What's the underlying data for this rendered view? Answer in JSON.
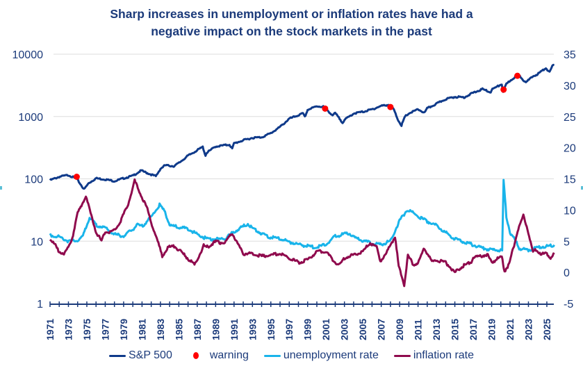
{
  "title_lines": [
    "Sharp increases in unemployment or inflation rates have had a",
    "negative impact on the stock markets in the past"
  ],
  "chart_data": {
    "type": "line",
    "title": "Sharp increases in unemployment or inflation rates have had a negative impact on the stock markets in the past",
    "xlabel": "",
    "ylabel_left": "",
    "ylabel_right": "",
    "x_ticks": [
      "1971",
      "1973",
      "1975",
      "1977",
      "1979",
      "1981",
      "1983",
      "1985",
      "1987",
      "1989",
      "1991",
      "1993",
      "1995",
      "1997",
      "1999",
      "2001",
      "2003",
      "2005",
      "2007",
      "2009",
      "2011",
      "2013",
      "2015",
      "2017",
      "2019",
      "2021",
      "2023",
      "2025"
    ],
    "y_left": {
      "scale": "log",
      "range": [
        1,
        10000
      ],
      "ticks": [
        "1",
        "10",
        "100",
        "1000",
        "10000"
      ]
    },
    "y_right": {
      "scale": "linear",
      "range": [
        -5,
        35
      ],
      "ticks": [
        "-5",
        "0",
        "5",
        "10",
        "15",
        "20",
        "25",
        "30",
        "35"
      ]
    },
    "grid": true,
    "legend": "bottom",
    "series": [
      {
        "name": "S&P 500",
        "axis": "left",
        "color": "#0f3a8a",
        "points": [
          [
            1971,
            95
          ],
          [
            1972,
            108
          ],
          [
            1973,
            115
          ],
          [
            1973.9,
            100
          ],
          [
            1974.7,
            68
          ],
          [
            1975.2,
            85
          ],
          [
            1976,
            102
          ],
          [
            1977,
            98
          ],
          [
            1978,
            92
          ],
          [
            1979,
            102
          ],
          [
            1980,
            112
          ],
          [
            1980.9,
            136
          ],
          [
            1981.5,
            125
          ],
          [
            1982.5,
            110
          ],
          [
            1983,
            145
          ],
          [
            1983.5,
            165
          ],
          [
            1984.5,
            160
          ],
          [
            1985,
            180
          ],
          [
            1986,
            235
          ],
          [
            1987.6,
            325
          ],
          [
            1987.9,
            235
          ],
          [
            1988,
            260
          ],
          [
            1989,
            330
          ],
          [
            1990.5,
            355
          ],
          [
            1990.8,
            305
          ],
          [
            1991,
            370
          ],
          [
            1992,
            415
          ],
          [
            1993,
            455
          ],
          [
            1994,
            465
          ],
          [
            1995,
            540
          ],
          [
            1996,
            680
          ],
          [
            1997,
            920
          ],
          [
            1998.5,
            1120
          ],
          [
            1998.7,
            980
          ],
          [
            1999,
            1280
          ],
          [
            2000,
            1460
          ],
          [
            2000.7,
            1440
          ],
          [
            2001,
            1320
          ],
          [
            2001.7,
            1050
          ],
          [
            2002,
            1130
          ],
          [
            2002.8,
            800
          ],
          [
            2003,
            880
          ],
          [
            2004,
            1120
          ],
          [
            2005,
            1190
          ],
          [
            2006,
            1300
          ],
          [
            2007,
            1480
          ],
          [
            2007.8,
            1540
          ],
          [
            2008.3,
            1350
          ],
          [
            2008.8,
            900
          ],
          [
            2009.2,
            720
          ],
          [
            2009.6,
            1000
          ],
          [
            2010,
            1120
          ],
          [
            2011,
            1300
          ],
          [
            2011.7,
            1150
          ],
          [
            2012,
            1350
          ],
          [
            2013,
            1600
          ],
          [
            2014,
            1900
          ],
          [
            2015,
            2070
          ],
          [
            2016,
            2030
          ],
          [
            2017,
            2400
          ],
          [
            2018,
            2750
          ],
          [
            2018.9,
            2450
          ],
          [
            2019,
            2700
          ],
          [
            2020.1,
            3300
          ],
          [
            2020.25,
            2500
          ],
          [
            2020.6,
            3300
          ],
          [
            2021,
            3750
          ],
          [
            2021.9,
            4700
          ],
          [
            2022.5,
            3800
          ],
          [
            2022.8,
            3600
          ],
          [
            2023.5,
            4400
          ],
          [
            2024,
            4800
          ],
          [
            2024.9,
            6000
          ],
          [
            2025.3,
            5100
          ],
          [
            2025.6,
            6400
          ],
          [
            2025.8,
            6700
          ]
        ]
      },
      {
        "name": "unemployment rate",
        "axis": "right",
        "color": "#19b4ea",
        "points": [
          [
            1971,
            6
          ],
          [
            1972,
            5.7
          ],
          [
            1973,
            5
          ],
          [
            1974,
            5.1
          ],
          [
            1974.5,
            5.6
          ],
          [
            1975.3,
            8.8
          ],
          [
            1976,
            7.6
          ],
          [
            1977,
            7.1
          ],
          [
            1978,
            6.1
          ],
          [
            1979,
            5.8
          ],
          [
            1980,
            6.9
          ],
          [
            1980.5,
            7.6
          ],
          [
            1981,
            7.4
          ],
          [
            1982,
            8.9
          ],
          [
            1982.9,
            10.8
          ],
          [
            1983.5,
            9.7
          ],
          [
            1984,
            7.6
          ],
          [
            1985,
            7.2
          ],
          [
            1986,
            7
          ],
          [
            1987,
            6.1
          ],
          [
            1988,
            5.4
          ],
          [
            1989,
            5.3
          ],
          [
            1990,
            5.4
          ],
          [
            1991,
            6.5
          ],
          [
            1992.5,
            7.8
          ],
          [
            1993,
            7.1
          ],
          [
            1994,
            6.2
          ],
          [
            1995,
            5.6
          ],
          [
            1996,
            5.4
          ],
          [
            1997,
            4.9
          ],
          [
            1998,
            4.5
          ],
          [
            1999,
            4.2
          ],
          [
            2000,
            4
          ],
          [
            2001,
            4.5
          ],
          [
            2002,
            5.8
          ],
          [
            2003.5,
            6.3
          ],
          [
            2004,
            5.6
          ],
          [
            2005,
            5.1
          ],
          [
            2006,
            4.6
          ],
          [
            2007,
            4.5
          ],
          [
            2008,
            5
          ],
          [
            2009,
            8.3
          ],
          [
            2009.8,
            10
          ],
          [
            2010.5,
            9.5
          ],
          [
            2011,
            9
          ],
          [
            2012,
            8.2
          ],
          [
            2013,
            7.5
          ],
          [
            2014,
            6.4
          ],
          [
            2015,
            5.4
          ],
          [
            2016,
            4.9
          ],
          [
            2017,
            4.4
          ],
          [
            2018,
            3.9
          ],
          [
            2019,
            3.6
          ],
          [
            2020.15,
            3.5
          ],
          [
            2020.3,
            14.7
          ],
          [
            2020.6,
            9
          ],
          [
            2021,
            6.4
          ],
          [
            2021.8,
            4.5
          ],
          [
            2022,
            3.8
          ],
          [
            2023,
            3.6
          ],
          [
            2024,
            4
          ],
          [
            2025,
            4.2
          ],
          [
            2025.8,
            4.4
          ]
        ]
      },
      {
        "name": "inflation rate",
        "axis": "right",
        "color": "#8f0a4d",
        "points": [
          [
            1971,
            5.3
          ],
          [
            1971.5,
            4.5
          ],
          [
            1972,
            3.3
          ],
          [
            1972.6,
            3
          ],
          [
            1973,
            4
          ],
          [
            1973.5,
            6
          ],
          [
            1974,
            9.5
          ],
          [
            1974.9,
            12.2
          ],
          [
            1975.5,
            9
          ],
          [
            1976,
            6.5
          ],
          [
            1976.6,
            5
          ],
          [
            1977,
            6.5
          ],
          [
            1977.6,
            6.5
          ],
          [
            1978,
            6.8
          ],
          [
            1978.6,
            8
          ],
          [
            1979.5,
            11
          ],
          [
            1980.2,
            14.7
          ],
          [
            1980.8,
            12.6
          ],
          [
            1981.5,
            10.5
          ],
          [
            1982,
            8
          ],
          [
            1982.7,
            5
          ],
          [
            1983.2,
            2.6
          ],
          [
            1983.8,
            4
          ],
          [
            1984.5,
            4.2
          ],
          [
            1985,
            3.6
          ],
          [
            1986,
            2.2
          ],
          [
            1986.7,
            1.2
          ],
          [
            1987,
            2
          ],
          [
            1987.7,
            4.3
          ],
          [
            1988,
            4
          ],
          [
            1989,
            4.9
          ],
          [
            1990,
            4.7
          ],
          [
            1990.8,
            6.3
          ],
          [
            1991.3,
            4.8
          ],
          [
            1992,
            3
          ],
          [
            1993,
            3
          ],
          [
            1994,
            2.6
          ],
          [
            1995,
            2.8
          ],
          [
            1996,
            3
          ],
          [
            1997,
            2.3
          ],
          [
            1998,
            1.6
          ],
          [
            1999,
            2
          ],
          [
            2000,
            3.3
          ],
          [
            2001,
            3.4
          ],
          [
            2001.8,
            1.8
          ],
          [
            2002.5,
            1.2
          ],
          [
            2003,
            2.3
          ],
          [
            2004,
            2.8
          ],
          [
            2005,
            3.4
          ],
          [
            2005.8,
            4.7
          ],
          [
            2006.5,
            4
          ],
          [
            2006.9,
            1.9
          ],
          [
            2007.5,
            2.7
          ],
          [
            2007.9,
            4.3
          ],
          [
            2008.5,
            5.6
          ],
          [
            2008.9,
            1
          ],
          [
            2009.5,
            -2
          ],
          [
            2009.9,
            2.7
          ],
          [
            2010.5,
            1.2
          ],
          [
            2011,
            1.6
          ],
          [
            2011.7,
            3.9
          ],
          [
            2012.5,
            1.7
          ],
          [
            2013,
            1.9
          ],
          [
            2014,
            1.6
          ],
          [
            2015,
            0
          ],
          [
            2016,
            1.1
          ],
          [
            2016.8,
            1.7
          ],
          [
            2017,
            2.4
          ],
          [
            2018,
            2.7
          ],
          [
            2018.5,
            2.9
          ],
          [
            2019,
            1.6
          ],
          [
            2019.8,
            2.3
          ],
          [
            2020.1,
            2.5
          ],
          [
            2020.4,
            0.2
          ],
          [
            2020.9,
            1.3
          ],
          [
            2021.2,
            3
          ],
          [
            2021.6,
            5.3
          ],
          [
            2021.9,
            7
          ],
          [
            2022.45,
            9.1
          ],
          [
            2022.9,
            7
          ],
          [
            2023.5,
            3.2
          ],
          [
            2023.8,
            3.6
          ],
          [
            2024.5,
            2.9
          ],
          [
            2025,
            3
          ],
          [
            2025.4,
            2.4
          ],
          [
            2025.8,
            2.9
          ]
        ]
      },
      {
        "name": "warning",
        "axis": "left",
        "color": "#ff0000",
        "kind": "marker",
        "points": [
          [
            1973.9,
            108
          ],
          [
            2000.9,
            1340
          ],
          [
            2008.0,
            1420
          ],
          [
            2020.3,
            2700
          ],
          [
            2021.8,
            4500
          ]
        ]
      }
    ]
  }
}
